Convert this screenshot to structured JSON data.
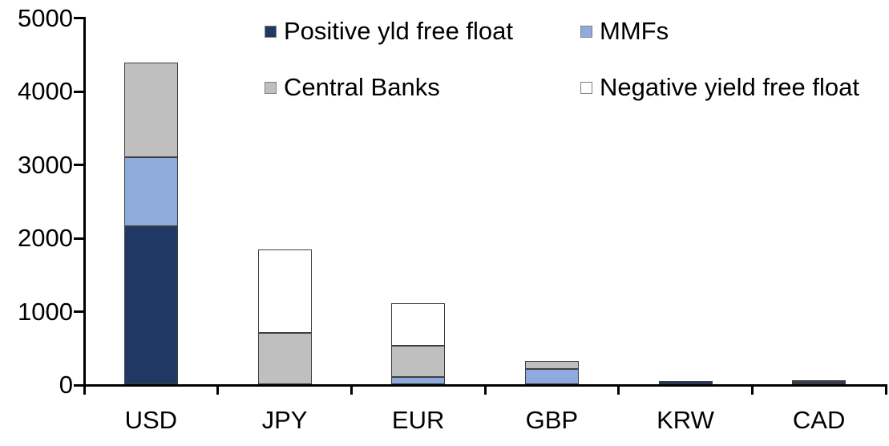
{
  "chart_data": {
    "type": "bar",
    "stacked": true,
    "title": "",
    "xlabel": "",
    "ylabel": "",
    "categories": [
      "USD",
      "JPY",
      "EUR",
      "GBP",
      "KRW",
      "CAD"
    ],
    "series": [
      {
        "name": "Positive yld free float",
        "color": "#1F3864",
        "values": [
          2150,
          0,
          0,
          0,
          40,
          35
        ]
      },
      {
        "name": "MMFs",
        "color": "#8FAADC",
        "values": [
          950,
          0,
          100,
          210,
          0,
          0
        ]
      },
      {
        "name": "Central Banks",
        "color": "#BFBFBF",
        "values": [
          1280,
          700,
          430,
          110,
          0,
          25
        ]
      },
      {
        "name": "Negative yield free float",
        "color": "#FFFFFF",
        "values": [
          0,
          1140,
          580,
          0,
          0,
          0
        ]
      }
    ],
    "totals": [
      4380,
      1840,
      1110,
      320,
      40,
      60
    ],
    "ylim": [
      0,
      5000
    ],
    "yticks": [
      0,
      1000,
      2000,
      3000,
      4000,
      5000
    ],
    "grid": false,
    "legend_position": "top",
    "legend_columns": 2
  },
  "legend": {
    "items": [
      {
        "label": "Positive yld free float",
        "color": "#1F3864"
      },
      {
        "label": "MMFs",
        "color": "#8FAADC"
      },
      {
        "label": "Central Banks",
        "color": "#BFBFBF"
      },
      {
        "label": "Negative yield free float",
        "color": "#FFFFFF"
      }
    ]
  },
  "colors": {
    "axis": "#000000",
    "segment_outline": "#3F3F3F",
    "text": "#000000",
    "background": "#FFFFFF"
  }
}
